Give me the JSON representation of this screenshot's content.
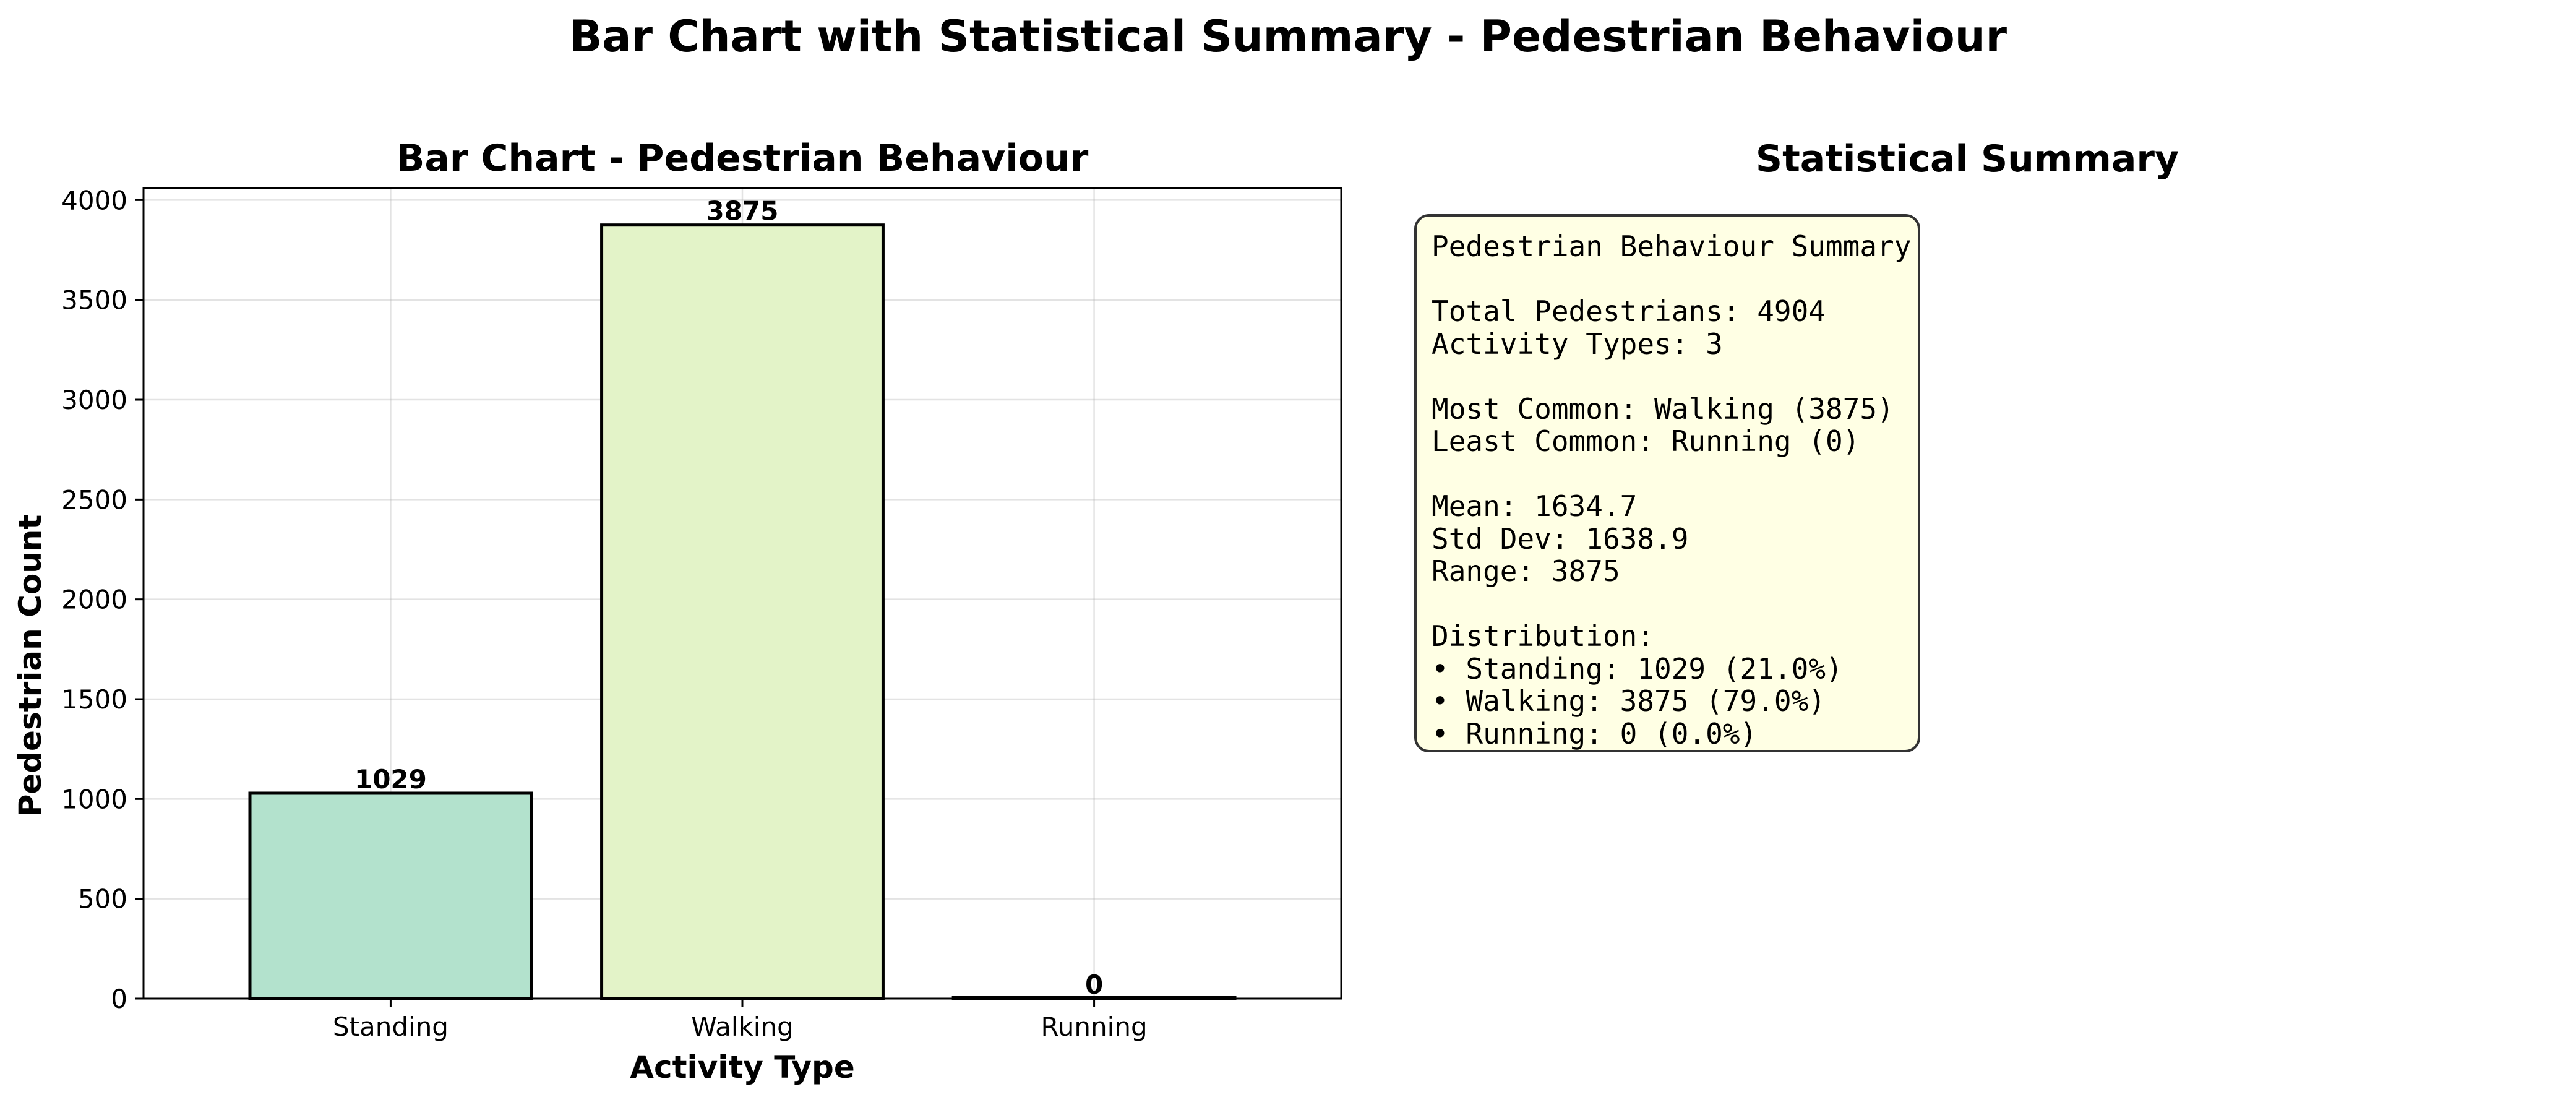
{
  "figure": {
    "suptitle": "Bar Chart with Statistical Summary - Pedestrian Behaviour"
  },
  "chart_data": {
    "type": "bar",
    "title": "Bar Chart - Pedestrian Behaviour",
    "xlabel": "Activity Type",
    "ylabel": "Pedestrian Count",
    "categories": [
      "Standing",
      "Walking",
      "Running"
    ],
    "values": [
      1029,
      3875,
      0
    ],
    "data_labels": [
      "1029",
      "3875",
      "0"
    ],
    "colors": [
      "#b3e2cd",
      "#e3f3c8",
      "#fdcdac"
    ],
    "edge_color": "#000000",
    "ylim": [
      0,
      4060
    ],
    "yticks": [
      0,
      500,
      1000,
      1500,
      2000,
      2500,
      3000,
      3500,
      4000
    ],
    "grid": true
  },
  "summary": {
    "title": "Statistical Summary",
    "lines": [
      "Pedestrian Behaviour Summary",
      "",
      "Total Pedestrians: 4904",
      "Activity Types: 3",
      "",
      "Most Common: Walking (3875)",
      "Least Common: Running (0)",
      "",
      "Mean: 1634.7",
      "Std Dev: 1638.9",
      "Range: 3875",
      "",
      "Distribution:",
      "• Standing: 1029 (21.0%)",
      "• Walking: 3875 (79.0%)",
      "• Running: 0 (0.0%)"
    ],
    "box_color": "#ffffe4"
  }
}
